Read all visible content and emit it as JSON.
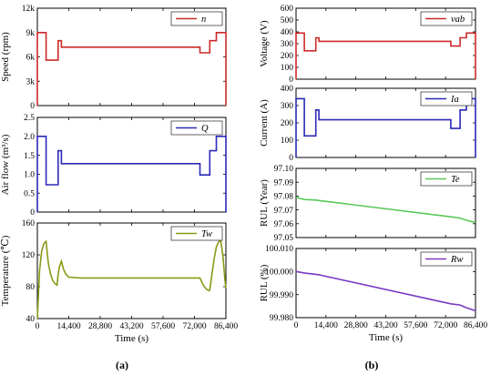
{
  "captions": {
    "left": "(a)",
    "right": "(b)"
  },
  "chart_data": [
    {
      "type": "line",
      "column": "left",
      "ylabel": "Speed (rpm)",
      "xlabel": "",
      "legend": "n",
      "legend_placement": "top-right",
      "color": "#cc2a2a",
      "xlim": [
        0,
        86400
      ],
      "ylim": [
        0,
        12000
      ],
      "xticks": [
        0,
        14400,
        28800,
        43200,
        57600,
        72000,
        86400
      ],
      "yticks": [
        0,
        3000,
        6000,
        9000,
        12000
      ],
      "ytick_labels": [
        "0",
        "3k",
        "6k",
        "9k",
        "12k"
      ],
      "x": [
        0,
        0,
        4000,
        4000,
        9500,
        9500,
        11000,
        11000,
        74500,
        74500,
        79000,
        79000,
        82000,
        82000,
        86400,
        86400
      ],
      "y": [
        0,
        9000,
        9000,
        5600,
        5600,
        8000,
        8000,
        7200,
        7200,
        6500,
        6500,
        8000,
        8000,
        9000,
        9000,
        0
      ]
    },
    {
      "type": "line",
      "column": "left",
      "ylabel": "Air flow (m³/s)",
      "xlabel": "",
      "legend": "Q",
      "legend_placement": "top-right",
      "color": "#2a2ab8",
      "xlim": [
        0,
        86400
      ],
      "ylim": [
        0,
        2.5
      ],
      "xticks": [
        0,
        14400,
        28800,
        43200,
        57600,
        72000,
        86400
      ],
      "yticks": [
        0,
        0.5,
        1.0,
        1.5,
        2.0,
        2.5
      ],
      "ytick_labels": [
        "0",
        "0.5",
        "1.0",
        "1.5",
        "2.0",
        "2.5"
      ],
      "x": [
        0,
        0,
        4000,
        4000,
        9500,
        9500,
        11000,
        11000,
        74500,
        74500,
        79000,
        79000,
        82000,
        82000,
        86400,
        86400
      ],
      "y": [
        0,
        2.0,
        2.0,
        0.72,
        0.72,
        1.62,
        1.62,
        1.28,
        1.28,
        0.98,
        0.98,
        1.62,
        1.62,
        2.0,
        2.0,
        0
      ]
    },
    {
      "type": "line",
      "column": "left",
      "ylabel": "Temperature (℃)",
      "xlabel": "Time (s)",
      "legend": "Tw",
      "legend_placement": "top-right",
      "color": "#8a9a14",
      "xlim": [
        0,
        86400
      ],
      "ylim": [
        40,
        160
      ],
      "xticks": [
        0,
        14400,
        28800,
        43200,
        57600,
        72000,
        86400
      ],
      "xtick_labels": [
        "0",
        "14,400",
        "28,800",
        "43,200",
        "57,600",
        "72,000",
        "86,400"
      ],
      "yticks": [
        40,
        80,
        120,
        160
      ],
      "ytick_labels": [
        "40",
        "80",
        "120",
        "160"
      ],
      "x": [
        0,
        1000,
        2000,
        3000,
        4000,
        5000,
        6000,
        7000,
        8000,
        9000,
        9500,
        10000,
        11000,
        12000,
        13000,
        14400,
        20000,
        30000,
        40000,
        50000,
        60000,
        70000,
        74500,
        75500,
        76500,
        77500,
        78500,
        79000,
        80000,
        81000,
        82000,
        83000,
        84000,
        85000,
        86000,
        86400
      ],
      "y": [
        40,
        100,
        125,
        134,
        137,
        110,
        96,
        88,
        84,
        82,
        95,
        104,
        112,
        102,
        96,
        92,
        91,
        91,
        91,
        91,
        91,
        91,
        91,
        85,
        80,
        77,
        75,
        76,
        96,
        115,
        130,
        136,
        138,
        120,
        88,
        78
      ]
    },
    {
      "type": "line",
      "column": "right",
      "ylabel": "Voltage (V)",
      "xlabel": "",
      "legend": "vab",
      "legend_placement": "top-right",
      "color": "#cc2a2a",
      "xlim": [
        0,
        86400
      ],
      "ylim": [
        0,
        600
      ],
      "xticks": [
        0,
        14400,
        28800,
        43200,
        57600,
        72000,
        86400
      ],
      "yticks": [
        0,
        100,
        200,
        300,
        400,
        500,
        600
      ],
      "ytick_labels": [
        "0",
        "100",
        "200",
        "300",
        "400",
        "500",
        "600"
      ],
      "x": [
        0,
        0,
        4000,
        4000,
        9500,
        9500,
        11000,
        11000,
        74500,
        74500,
        79000,
        79000,
        82000,
        82000,
        86400,
        86400
      ],
      "y": [
        0,
        390,
        390,
        240,
        240,
        350,
        350,
        320,
        320,
        280,
        280,
        350,
        350,
        390,
        390,
        0
      ]
    },
    {
      "type": "line",
      "column": "right",
      "ylabel": "Current (A)",
      "xlabel": "",
      "legend": "Ia",
      "legend_placement": "top-right",
      "color": "#2a2ab8",
      "xlim": [
        0,
        86400
      ],
      "ylim": [
        0,
        400
      ],
      "xticks": [
        0,
        14400,
        28800,
        43200,
        57600,
        72000,
        86400
      ],
      "yticks": [
        0,
        100,
        200,
        300,
        400
      ],
      "ytick_labels": [
        "0",
        "100",
        "200",
        "300",
        "400"
      ],
      "x": [
        0,
        0,
        4000,
        4000,
        9500,
        9500,
        11000,
        11000,
        74500,
        74500,
        79000,
        79000,
        82000,
        82000,
        86400,
        86400
      ],
      "y": [
        0,
        340,
        340,
        125,
        125,
        275,
        275,
        218,
        218,
        168,
        168,
        275,
        275,
        340,
        340,
        0
      ]
    },
    {
      "type": "line",
      "column": "right",
      "ylabel": "RUL (Year)",
      "xlabel": "",
      "legend": "Te",
      "legend_placement": "top-right",
      "color": "#5ac85a",
      "xlim": [
        0,
        86400
      ],
      "ylim": [
        97.05,
        97.1
      ],
      "xticks": [
        0,
        14400,
        28800,
        43200,
        57600,
        72000,
        86400
      ],
      "yticks": [
        97.05,
        97.06,
        97.07,
        97.08,
        97.09,
        97.1
      ],
      "ytick_labels": [
        "97.05",
        "97.06",
        "97.07",
        "97.08",
        "97.09",
        "97.10"
      ],
      "x": [
        0,
        4000,
        9500,
        11000,
        74500,
        79000,
        82000,
        86400
      ],
      "y": [
        97.079,
        97.0775,
        97.0771,
        97.0768,
        97.065,
        97.0641,
        97.0625,
        97.061
      ]
    },
    {
      "type": "line",
      "column": "right",
      "ylabel": "RUL (%)",
      "xlabel": "Time (s)",
      "legend": "Rw",
      "legend_placement": "top-right",
      "color": "#7a3ac4",
      "xlim": [
        0,
        86400
      ],
      "ylim": [
        99.98,
        100.01
      ],
      "xticks": [
        0,
        14400,
        28800,
        43200,
        57600,
        72000,
        86400
      ],
      "xtick_labels": [
        "0",
        "14,400",
        "28,800",
        "43,200",
        "57,600",
        "72,000",
        "86,400"
      ],
      "yticks": [
        99.98,
        99.99,
        100.0,
        100.01
      ],
      "ytick_labels": [
        "99.980",
        "99.990",
        "100.000",
        "100.010"
      ],
      "x": [
        0,
        4000,
        9500,
        11000,
        74500,
        79000,
        82000,
        86400
      ],
      "y": [
        100.0,
        99.9994,
        99.9988,
        99.9986,
        99.986,
        99.9855,
        99.9843,
        99.983
      ]
    }
  ]
}
